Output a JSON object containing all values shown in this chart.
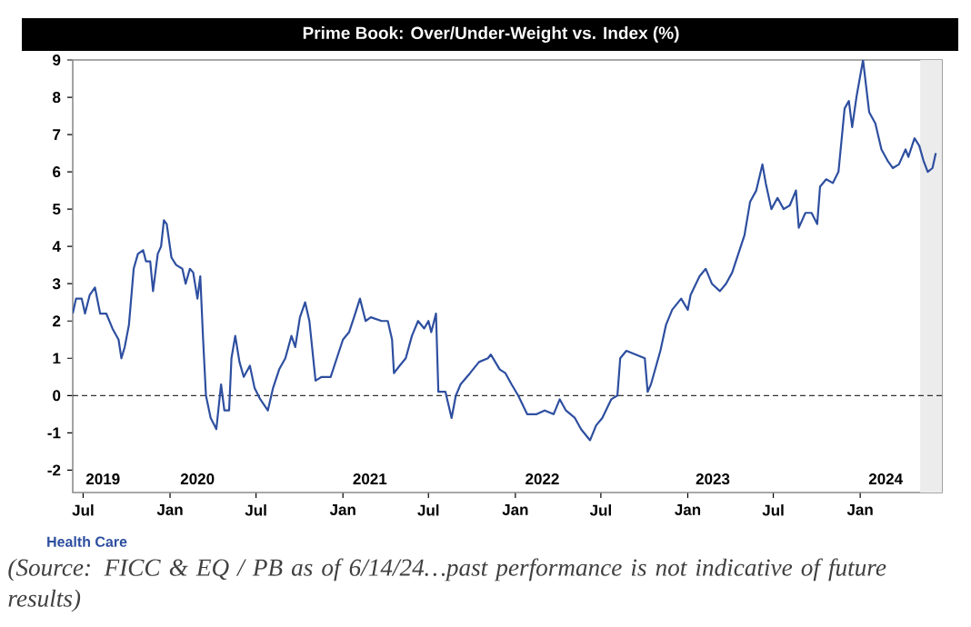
{
  "chart_data": {
    "type": "line",
    "title": "Prime Book: Over/Under-Weight vs. Index (%)",
    "annotations": [
      "(Source: FICC & EQ / PB as of 6/14/24…past performance is not indicative of future results)"
    ],
    "x": [
      "2019-06-09",
      "2019-06-16",
      "2019-06-28",
      "2019-07-05",
      "2019-07-15",
      "2019-07-26",
      "2019-08-06",
      "2019-08-19",
      "2019-09-01",
      "2019-09-14",
      "2019-09-20",
      "2019-09-27",
      "2019-10-06",
      "2019-10-16",
      "2019-10-25",
      "2019-11-05",
      "2019-11-11",
      "2019-11-20",
      "2019-11-26",
      "2019-12-06",
      "2019-12-13",
      "2019-12-19",
      "2019-12-25",
      "2020-01-04",
      "2020-01-14",
      "2020-01-27",
      "2020-02-03",
      "2020-02-12",
      "2020-02-19",
      "2020-02-28",
      "2020-03-05",
      "2020-03-11",
      "2020-03-17",
      "2020-03-27",
      "2020-04-08",
      "2020-04-18",
      "2020-04-25",
      "2020-05-05",
      "2020-05-10",
      "2020-05-18",
      "2020-05-27",
      "2020-06-05",
      "2020-06-18",
      "2020-06-28",
      "2020-07-10",
      "2020-07-26",
      "2020-08-06",
      "2020-08-19",
      "2020-09-01",
      "2020-09-14",
      "2020-09-22",
      "2020-10-02",
      "2020-10-13",
      "2020-10-22",
      "2020-11-04",
      "2020-11-17",
      "2020-12-06",
      "2020-12-19",
      "2021-01-01",
      "2021-01-14",
      "2021-01-27",
      "2021-02-06",
      "2021-02-18",
      "2021-03-01",
      "2021-03-24",
      "2021-04-06",
      "2021-04-15",
      "2021-04-19",
      "2021-05-01",
      "2021-05-14",
      "2021-05-27",
      "2021-06-09",
      "2021-06-22",
      "2021-07-01",
      "2021-07-07",
      "2021-07-17",
      "2021-07-22",
      "2021-08-06",
      "2021-08-19",
      "2021-08-28",
      "2021-09-07",
      "2021-09-27",
      "2021-10-16",
      "2021-11-04",
      "2021-11-10",
      "2021-11-29",
      "2021-12-11",
      "2021-12-24",
      "2022-01-07",
      "2022-01-26",
      "2022-02-15",
      "2022-03-04",
      "2022-03-23",
      "2022-04-05",
      "2022-04-18",
      "2022-05-07",
      "2022-05-20",
      "2022-06-08",
      "2022-06-21",
      "2022-07-04",
      "2022-07-23",
      "2022-08-05",
      "2022-08-11",
      "2022-08-24",
      "2022-09-13",
      "2022-10-02",
      "2022-10-08",
      "2022-10-15",
      "2022-11-04",
      "2022-11-16",
      "2022-11-29",
      "2022-12-18",
      "2023-01-01",
      "2023-01-07",
      "2023-01-26",
      "2023-02-08",
      "2023-02-21",
      "2023-03-10",
      "2023-03-23",
      "2023-04-05",
      "2023-04-18",
      "2023-05-01",
      "2023-05-13",
      "2023-05-26",
      "2023-06-08",
      "2023-06-15",
      "2023-06-27",
      "2023-07-10",
      "2023-07-23",
      "2023-08-05",
      "2023-08-18",
      "2023-08-24",
      "2023-09-07",
      "2023-09-20",
      "2023-10-02",
      "2023-10-08",
      "2023-10-21",
      "2023-11-04",
      "2023-11-16",
      "2023-11-29",
      "2023-12-08",
      "2023-12-15",
      "2023-12-24",
      "2024-01-07",
      "2024-01-20",
      "2024-02-02",
      "2024-02-15",
      "2024-02-28",
      "2024-03-10",
      "2024-03-23",
      "2024-04-06",
      "2024-04-12",
      "2024-04-25",
      "2024-05-05",
      "2024-05-14",
      "2024-05-23",
      "2024-06-02",
      "2024-06-09"
    ],
    "series": [
      {
        "name": "Health Care",
        "color": "#2e4fa0",
        "values": [
          2.2,
          2.6,
          2.6,
          2.2,
          2.7,
          2.9,
          2.2,
          2.2,
          1.8,
          1.5,
          1.0,
          1.3,
          1.9,
          3.4,
          3.8,
          3.9,
          3.6,
          3.6,
          2.8,
          3.8,
          4.0,
          4.7,
          4.6,
          3.7,
          3.5,
          3.4,
          3.0,
          3.4,
          3.3,
          2.6,
          3.2,
          1.5,
          0.0,
          -0.6,
          -0.9,
          0.3,
          -0.4,
          -0.4,
          1.0,
          1.6,
          0.9,
          0.5,
          0.8,
          0.2,
          -0.1,
          -0.4,
          0.2,
          0.7,
          1.0,
          1.6,
          1.3,
          2.1,
          2.5,
          2.0,
          0.4,
          0.5,
          0.5,
          1.0,
          1.5,
          1.7,
          2.2,
          2.6,
          2.0,
          2.1,
          2.0,
          2.0,
          1.5,
          0.6,
          0.8,
          1.0,
          1.6,
          2.0,
          1.8,
          2.0,
          1.7,
          2.2,
          0.1,
          0.1,
          -0.6,
          0.0,
          0.3,
          0.6,
          0.9,
          1.0,
          1.1,
          0.7,
          0.6,
          0.3,
          0.0,
          -0.5,
          -0.5,
          -0.4,
          -0.5,
          -0.1,
          -0.4,
          -0.6,
          -0.9,
          -1.2,
          -0.8,
          -0.6,
          -0.1,
          0.0,
          1.0,
          1.2,
          1.1,
          1.0,
          0.1,
          0.3,
          1.2,
          1.9,
          2.3,
          2.6,
          2.3,
          2.7,
          3.2,
          3.4,
          3.0,
          2.8,
          3.0,
          3.3,
          3.8,
          4.3,
          5.2,
          5.5,
          6.2,
          5.7,
          5.0,
          5.3,
          5.0,
          5.1,
          5.5,
          4.5,
          4.9,
          4.9,
          4.6,
          5.6,
          5.8,
          5.7,
          6.0,
          7.7,
          7.9,
          7.2,
          8.0,
          9.0,
          7.6,
          7.3,
          6.6,
          6.3,
          6.1,
          6.2,
          6.6,
          6.4,
          6.9,
          6.7,
          6.3,
          6.0,
          6.1,
          6.5
        ]
      }
    ],
    "xlim": [
      "2019-06-09",
      "2024-06-22"
    ],
    "ylim": [
      -2.6,
      9
    ],
    "xticks": [
      {
        "value": "2019-07-01",
        "label": "Jul"
      },
      {
        "value": "2020-01-01",
        "label": "Jan"
      },
      {
        "value": "2020-07-01",
        "label": "Jul"
      },
      {
        "value": "2021-01-01",
        "label": "Jan"
      },
      {
        "value": "2021-07-01",
        "label": "Jul"
      },
      {
        "value": "2022-01-01",
        "label": "Jan"
      },
      {
        "value": "2022-07-01",
        "label": "Jul"
      },
      {
        "value": "2023-01-01",
        "label": "Jan"
      },
      {
        "value": "2023-07-01",
        "label": "Jul"
      },
      {
        "value": "2024-01-01",
        "label": "Jan"
      }
    ],
    "yticks": [
      -2,
      -1,
      0,
      1,
      2,
      3,
      4,
      5,
      6,
      7,
      8,
      9
    ],
    "x2lim": [
      "2019-06-09",
      "2024-06-22"
    ],
    "x2ticks": [
      {
        "value": "2019-08-12",
        "label": "2019"
      },
      {
        "value": "2020-02-28",
        "label": "2020"
      },
      {
        "value": "2021-02-27",
        "label": "2021"
      },
      {
        "value": "2022-02-27",
        "label": "2022"
      },
      {
        "value": "2023-02-23",
        "label": "2023"
      },
      {
        "value": "2024-02-24",
        "label": "2024"
      }
    ],
    "ref_lines": [
      {
        "axis": "y",
        "value": 0,
        "color": "#333333",
        "line_style": "dashed"
      }
    ],
    "bands": [
      {
        "axis": "x",
        "from": "2024-05-07",
        "to": "2024-06-22",
        "color": "#ececec"
      }
    ],
    "line_style": "solid"
  }
}
